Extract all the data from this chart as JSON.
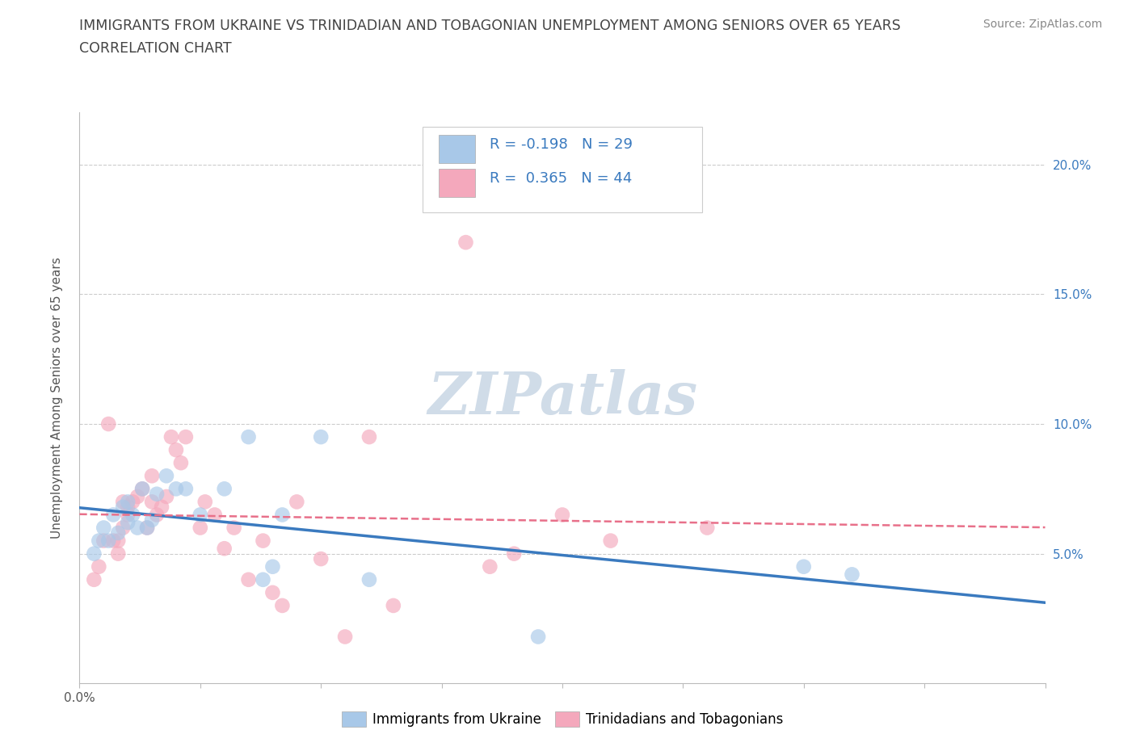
{
  "title_line1": "IMMIGRANTS FROM UKRAINE VS TRINIDADIAN AND TOBAGONIAN UNEMPLOYMENT AMONG SENIORS OVER 65 YEARS",
  "title_line2": "CORRELATION CHART",
  "source": "Source: ZipAtlas.com",
  "ylabel": "Unemployment Among Seniors over 65 years",
  "xlim": [
    0.0,
    0.2
  ],
  "ylim": [
    0.0,
    0.22
  ],
  "yticks": [
    0.05,
    0.1,
    0.15,
    0.2
  ],
  "ytick_labels": [
    "5.0%",
    "10.0%",
    "15.0%",
    "20.0%"
  ],
  "xticks": [
    0.0,
    0.025,
    0.05,
    0.075,
    0.1,
    0.125,
    0.15,
    0.175,
    0.2
  ],
  "xtick_labels_show": {
    "0.0": "0.0%",
    "0.20": "20.0%"
  },
  "legend_label1": "Immigrants from Ukraine",
  "legend_label2": "Trinidadians and Tobagonians",
  "r1": -0.198,
  "n1": 29,
  "r2": 0.365,
  "n2": 44,
  "color_blue": "#a8c8e8",
  "color_pink": "#f4a8bc",
  "color_blue_line": "#3a7abf",
  "color_pink_line": "#e8708a",
  "watermark_color": "#d0dce8",
  "ukraine_x": [
    0.003,
    0.004,
    0.005,
    0.006,
    0.007,
    0.008,
    0.009,
    0.01,
    0.01,
    0.011,
    0.012,
    0.013,
    0.014,
    0.015,
    0.016,
    0.018,
    0.02,
    0.022,
    0.025,
    0.03,
    0.035,
    0.038,
    0.04,
    0.042,
    0.05,
    0.06,
    0.095,
    0.15,
    0.16
  ],
  "ukraine_y": [
    0.05,
    0.055,
    0.06,
    0.055,
    0.065,
    0.058,
    0.068,
    0.07,
    0.062,
    0.065,
    0.06,
    0.075,
    0.06,
    0.063,
    0.073,
    0.08,
    0.075,
    0.075,
    0.065,
    0.075,
    0.095,
    0.04,
    0.045,
    0.065,
    0.095,
    0.04,
    0.018,
    0.045,
    0.042
  ],
  "tt_x": [
    0.003,
    0.004,
    0.005,
    0.006,
    0.007,
    0.008,
    0.008,
    0.009,
    0.009,
    0.01,
    0.01,
    0.011,
    0.012,
    0.013,
    0.014,
    0.015,
    0.015,
    0.016,
    0.017,
    0.018,
    0.019,
    0.02,
    0.021,
    0.022,
    0.025,
    0.026,
    0.028,
    0.03,
    0.032,
    0.035,
    0.038,
    0.04,
    0.042,
    0.045,
    0.05,
    0.055,
    0.06,
    0.065,
    0.08,
    0.085,
    0.09,
    0.1,
    0.11,
    0.13
  ],
  "tt_y": [
    0.04,
    0.045,
    0.055,
    0.1,
    0.055,
    0.055,
    0.05,
    0.07,
    0.06,
    0.065,
    0.068,
    0.07,
    0.072,
    0.075,
    0.06,
    0.07,
    0.08,
    0.065,
    0.068,
    0.072,
    0.095,
    0.09,
    0.085,
    0.095,
    0.06,
    0.07,
    0.065,
    0.052,
    0.06,
    0.04,
    0.055,
    0.035,
    0.03,
    0.07,
    0.048,
    0.018,
    0.095,
    0.03,
    0.17,
    0.045,
    0.05,
    0.065,
    0.055,
    0.06
  ]
}
